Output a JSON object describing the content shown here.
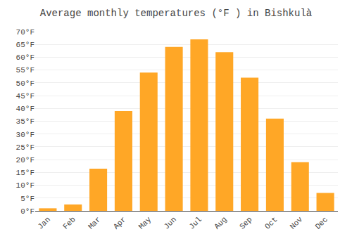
{
  "chart_data": {
    "type": "bar",
    "title": "Average monthly temperatures (°F ) in Bishkulà",
    "categories": [
      "Jan",
      "Feb",
      "Mar",
      "Apr",
      "May",
      "Jun",
      "Jul",
      "Aug",
      "Sep",
      "Oct",
      "Nov",
      "Dec"
    ],
    "values": [
      1,
      2.5,
      16.5,
      39,
      54,
      64,
      67,
      62,
      52,
      36,
      19,
      7
    ],
    "color": "#FFA726",
    "ylim": [
      0,
      70
    ],
    "yticks": [
      {
        "value": 0,
        "label": "0°F"
      },
      {
        "value": 5,
        "label": "5°F"
      },
      {
        "value": 10,
        "label": "10°F"
      },
      {
        "value": 15,
        "label": "15°F"
      },
      {
        "value": 20,
        "label": "20°F"
      },
      {
        "value": 25,
        "label": "25°F"
      },
      {
        "value": 30,
        "label": "30°F"
      },
      {
        "value": 35,
        "label": "35°F"
      },
      {
        "value": 40,
        "label": "40°F"
      },
      {
        "value": 45,
        "label": "45°F"
      },
      {
        "value": 50,
        "label": "50°F"
      },
      {
        "value": 55,
        "label": "55°F"
      },
      {
        "value": 60,
        "label": "60°F"
      },
      {
        "value": 65,
        "label": "65°F"
      },
      {
        "value": 70,
        "label": "70°F"
      }
    ],
    "grid": true
  }
}
